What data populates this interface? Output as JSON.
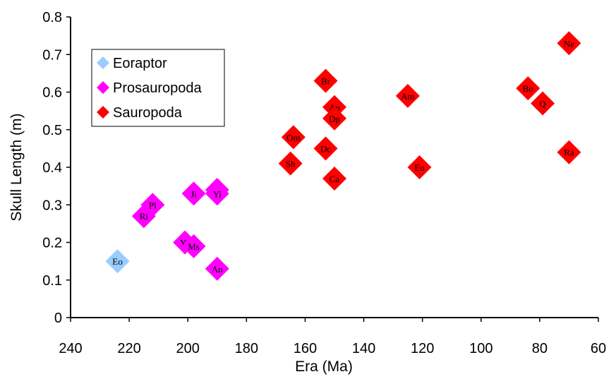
{
  "chart_data": {
    "type": "scatter",
    "title": "",
    "xlabel": "Era (Ma)",
    "ylabel": "Skull Length (m)",
    "xlim": [
      240,
      60
    ],
    "ylim": [
      0,
      0.8
    ],
    "x_reversed": true,
    "x_ticks": [
      "240",
      "220",
      "200",
      "180",
      "160",
      "140",
      "120",
      "100",
      "80",
      "60"
    ],
    "y_ticks": [
      "0",
      "0.1",
      "0.2",
      "0.3",
      "0.4",
      "0.5",
      "0.6",
      "0.7",
      "0.8"
    ],
    "grid": false,
    "legend_position": "top-left",
    "series": [
      {
        "name": "Eoraptor",
        "color": "#99ccff",
        "marker": "diamond",
        "points": [
          {
            "label": "Eo",
            "x": 224,
            "y": 0.15
          }
        ]
      },
      {
        "name": "Prosauropoda",
        "color": "#ff00ff",
        "marker": "diamond",
        "points": [
          {
            "label": "Ri",
            "x": 215,
            "y": 0.27
          },
          {
            "label": "Pl",
            "x": 212,
            "y": 0.3
          },
          {
            "label": "Ji",
            "x": 198,
            "y": 0.33
          },
          {
            "label": "Lu",
            "x": 190,
            "y": 0.34
          },
          {
            "label": "Yi",
            "x": 190,
            "y": 0.33
          },
          {
            "label": "Yu",
            "x": 201,
            "y": 0.2
          },
          {
            "label": "Ms",
            "x": 198,
            "y": 0.19
          },
          {
            "label": "An",
            "x": 190,
            "y": 0.13
          }
        ]
      },
      {
        "name": "Sauropoda",
        "color": "#ff0000",
        "marker": "diamond",
        "points": [
          {
            "label": "Br",
            "x": 153,
            "y": 0.63
          },
          {
            "label": "Ap",
            "x": 150,
            "y": 0.56
          },
          {
            "label": "Dp",
            "x": 150,
            "y": 0.53
          },
          {
            "label": "Om",
            "x": 164,
            "y": 0.48
          },
          {
            "label": "Dc",
            "x": 153,
            "y": 0.45
          },
          {
            "label": "Sh",
            "x": 165,
            "y": 0.41
          },
          {
            "label": "Ca",
            "x": 150,
            "y": 0.37
          },
          {
            "label": "Am",
            "x": 125,
            "y": 0.59
          },
          {
            "label": "Eu",
            "x": 121,
            "y": 0.4
          },
          {
            "label": "Bo",
            "x": 84,
            "y": 0.61
          },
          {
            "label": "Q",
            "x": 79,
            "y": 0.57
          },
          {
            "label": "Ne",
            "x": 70,
            "y": 0.73
          },
          {
            "label": "Ra",
            "x": 70,
            "y": 0.44
          }
        ]
      }
    ]
  }
}
